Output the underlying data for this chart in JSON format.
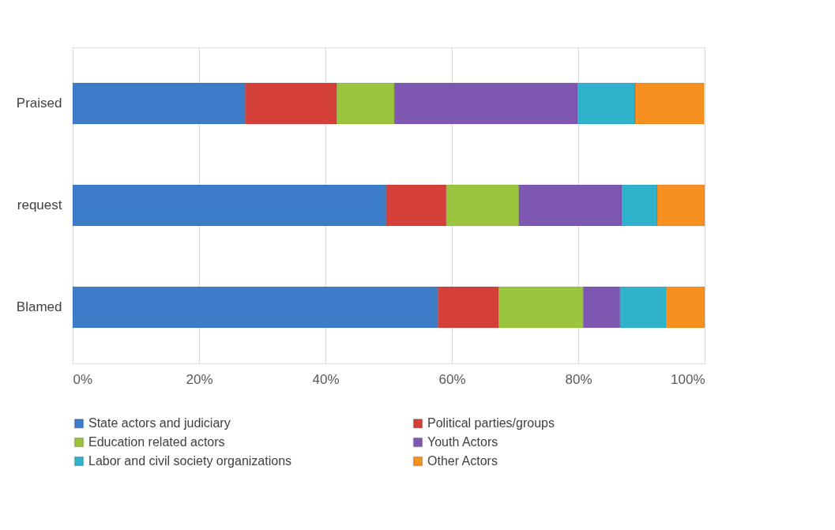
{
  "chart_data": {
    "type": "bar",
    "orientation": "horizontal",
    "stacked": true,
    "categories": [
      "Praised",
      "request",
      "Blamed"
    ],
    "series": [
      {
        "name": "State actors and judiciary",
        "color": "#3d7cc9",
        "values": [
          27.3,
          49.6,
          57.8
        ]
      },
      {
        "name": "Political parties/groups",
        "color": "#d43f3a",
        "values": [
          14.5,
          9.5,
          9.6
        ]
      },
      {
        "name": "Education related actors",
        "color": "#9bc53d",
        "values": [
          9.1,
          11.5,
          13.4
        ]
      },
      {
        "name": "Youth Actors",
        "color": "#7e57b2",
        "values": [
          29.0,
          16.3,
          5.8
        ]
      },
      {
        "name": "Labor and civil society organizations",
        "color": "#2fb3cc",
        "values": [
          9.1,
          5.6,
          7.3
        ]
      },
      {
        "name": "Other Actors",
        "color": "#f7901e",
        "values": [
          10.9,
          7.5,
          6.1
        ]
      }
    ],
    "xlim": [
      0,
      100
    ],
    "xticks": [
      {
        "value": 0,
        "label": "0%"
      },
      {
        "value": 20,
        "label": "20%"
      },
      {
        "value": 40,
        "label": "40%"
      },
      {
        "value": 60,
        "label": "60%"
      },
      {
        "value": 80,
        "label": "80%"
      },
      {
        "value": 100,
        "label": "100%"
      }
    ],
    "grid": "x",
    "legend": "bottom"
  }
}
